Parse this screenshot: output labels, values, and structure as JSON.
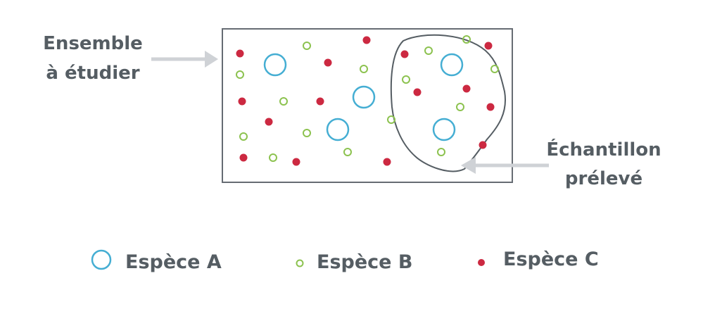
{
  "labels": {
    "ensemble_line1": "Ensemble",
    "ensemble_line2": "à étudier",
    "echantillon_line1": "Échantillon",
    "echantillon_line2": "prélevé"
  },
  "legend": {
    "a": "Espèce A",
    "b": "Espèce B",
    "c": "Espèce C"
  },
  "colors": {
    "species_a": "#45aed3",
    "species_b": "#8cc24f",
    "species_c": "#cc2941",
    "frame": "#666c73",
    "arrow": "#cfd2d6",
    "text": "#555d63"
  }
}
